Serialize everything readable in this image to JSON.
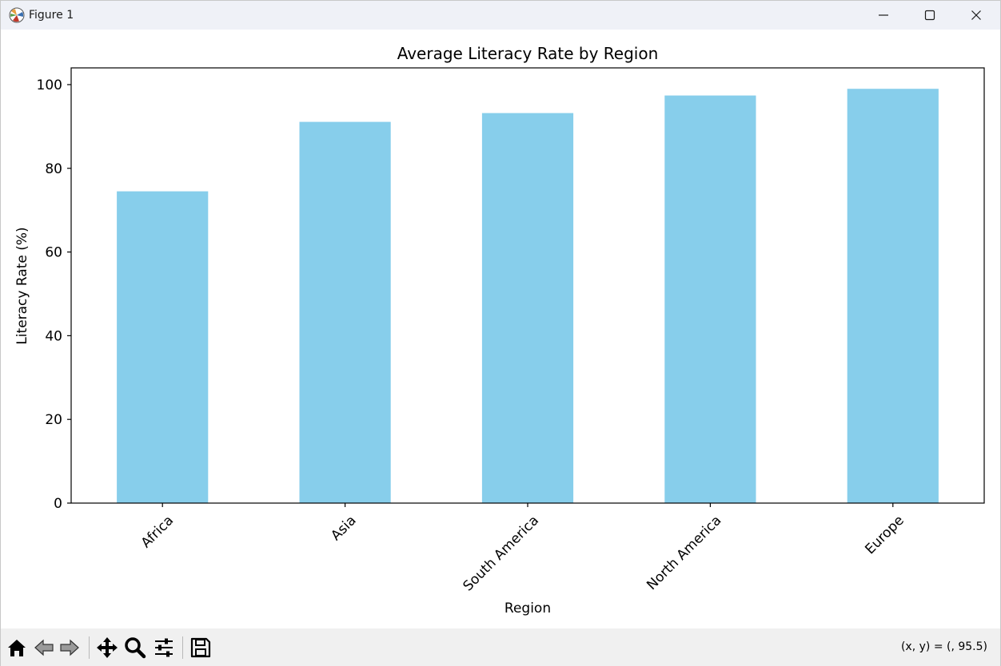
{
  "window": {
    "title": "Figure 1",
    "icons": {
      "app": "matplotlib-icon",
      "minimize": "minimize-icon",
      "maximize": "maximize-icon",
      "close": "close-icon"
    }
  },
  "toolbar": {
    "buttons": [
      "home-icon",
      "back-arrow-icon",
      "forward-arrow-icon",
      "pan-move-icon",
      "zoom-magnifier-icon",
      "configure-subplots-icon",
      "save-floppy-icon"
    ],
    "coordinates": "(x, y) = (, 95.5)"
  },
  "chart_data": {
    "type": "bar",
    "title": "Average Literacy Rate by Region",
    "xlabel": "Region",
    "ylabel": "Literacy Rate (%)",
    "categories": [
      "Africa",
      "Asia",
      "South America",
      "North America",
      "Europe"
    ],
    "values": [
      74.5,
      91.1,
      93.2,
      97.4,
      99.0
    ],
    "ylim": [
      0,
      104
    ],
    "yticks": [
      0,
      20,
      40,
      60,
      80,
      100
    ],
    "bar_color": "#87ceeb",
    "grid": false,
    "xtick_rotation": 45
  }
}
